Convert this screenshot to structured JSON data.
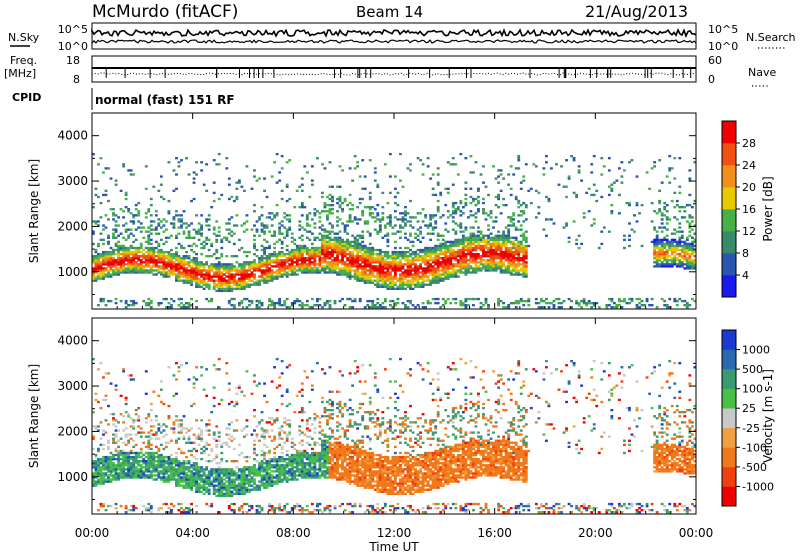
{
  "header": {
    "station": "McMurdo (fitACF)",
    "beam": "Beam 14",
    "date": "21/Aug/2013"
  },
  "panels": {
    "nsky": {
      "label": "N.Sky",
      "right_label": "N.Search",
      "left_ticks": [
        "10^5",
        "10^0"
      ],
      "right_ticks": [
        "10^5",
        "10^0"
      ]
    },
    "freq": {
      "label_line1": "Freq.",
      "label_line2": "[MHz]",
      "right_label": "Nave",
      "left_ticks": [
        "18",
        "8"
      ],
      "right_ticks": [
        "60",
        "0"
      ]
    },
    "cpid": {
      "label": "CPID",
      "text": "normal (fast) 151 RF"
    }
  },
  "colors": {
    "power": [
      "#1a1aee",
      "#2a55b0",
      "#3a8a6a",
      "#48b048",
      "#e8c800",
      "#f09018",
      "#f05010",
      "#ee0000"
    ],
    "velocity": [
      "#ee0000",
      "#f04010",
      "#f07818",
      "#f0a040",
      "#c8c8c8",
      "#48c048",
      "#3a9a70",
      "#2a6ab0",
      "#1a3ad0"
    ]
  },
  "chart_data": [
    {
      "type": "heatmap",
      "name": "power",
      "ylabel": "Slant Range [km]",
      "ylim": [
        180,
        4500
      ],
      "yticks": [
        "1000",
        "2000",
        "3000",
        "4000"
      ],
      "ytick_values": [
        1000,
        2000,
        3000,
        4000
      ],
      "xlim": [
        0,
        24
      ],
      "colorbar": {
        "label": "Power [dB]",
        "tick_labels": [
          "4",
          "8",
          "12",
          "16",
          "20",
          "24",
          "28"
        ],
        "tick_values": [
          4,
          8,
          12,
          16,
          20,
          24,
          28
        ],
        "range": [
          0,
          32
        ]
      },
      "features": [
        {
          "hours": [
            0,
            17.2
          ],
          "core_range_km": [
            900,
            1300
          ],
          "peak_power_db": 30
        },
        {
          "hours": [
            22.3,
            24
          ],
          "core_range_km": [
            900,
            1400
          ],
          "peak_power_db": 24
        },
        {
          "hours": [
            0,
            24
          ],
          "scatter_range_km": [
            1500,
            3600
          ],
          "typical_power_db": 8
        }
      ]
    },
    {
      "type": "heatmap",
      "name": "velocity",
      "xlabel": "Time UT",
      "ylabel": "Slant Range [km]",
      "ylim": [
        180,
        4500
      ],
      "yticks": [
        "1000",
        "2000",
        "3000",
        "4000"
      ],
      "ytick_values": [
        1000,
        2000,
        3000,
        4000
      ],
      "x_tick_labels": [
        "00:00",
        "04:00",
        "08:00",
        "12:00",
        "16:00",
        "20:00",
        "00:00"
      ],
      "x_tick_values": [
        0,
        4,
        8,
        12,
        16,
        20,
        24
      ],
      "colorbar": {
        "label": "Velocity [m s-1]",
        "tick_labels": [
          "-1000",
          "-500",
          "-100",
          "-25",
          "25",
          "100",
          "500",
          "1000"
        ]
      },
      "features": [
        {
          "hours": [
            0,
            9.3
          ],
          "core_range_km": [
            400,
            1600
          ],
          "velocity_band": "100 to 1000"
        },
        {
          "hours": [
            9.3,
            17.2
          ],
          "core_range_km": [
            400,
            2100
          ],
          "velocity_band": "-500 to -100"
        },
        {
          "hours": [
            22.3,
            24
          ],
          "core_range_km": [
            700,
            1600
          ],
          "velocity_band": "-500 to -100"
        },
        {
          "hours": [
            0,
            9
          ],
          "core_range_km": [
            1700,
            2300
          ],
          "velocity_band": "-25 to 25"
        }
      ]
    }
  ]
}
